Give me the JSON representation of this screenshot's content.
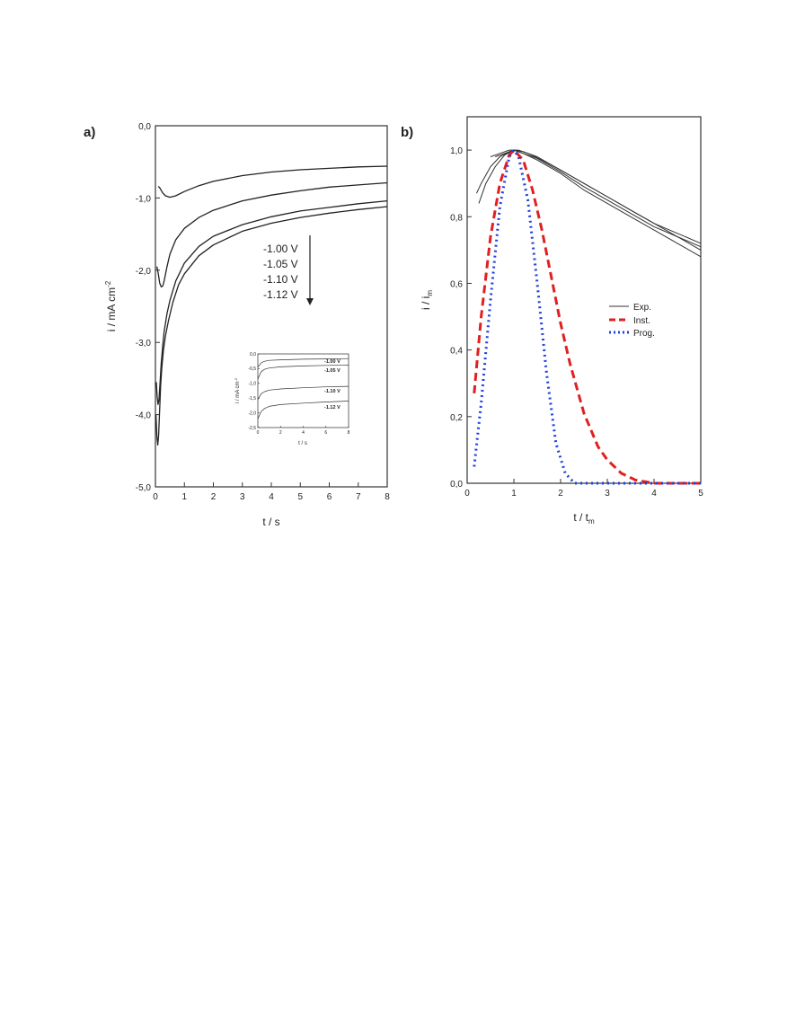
{
  "chart_data": [
    {
      "type": "line",
      "panel_label": "a)",
      "xlabel": "t / s",
      "ylabel": "i / mA cm",
      "ylabel_sup": "-2",
      "xlim": [
        0,
        8
      ],
      "ylim": [
        -5.0,
        0.0
      ],
      "x_ticks": [
        "0",
        "1",
        "2",
        "3",
        "4",
        "5",
        "6",
        "7",
        "8"
      ],
      "y_ticks": [
        "0,0",
        "-1,0",
        "-2,0",
        "-3,0",
        "-4,0",
        "-5,0"
      ],
      "grid": false,
      "arrow_labels": [
        "-1.00 V",
        "-1.05 V",
        "-1.10 V",
        "-1.12 V"
      ],
      "series": [
        {
          "x": [
            0.1,
            0.15,
            0.25,
            0.35,
            0.5,
            0.7,
            1.0,
            1.5,
            2,
            3,
            4,
            5,
            6,
            7,
            8
          ],
          "y": [
            -0.84,
            -0.86,
            -0.93,
            -0.97,
            -0.99,
            -0.97,
            -0.91,
            -0.83,
            -0.77,
            -0.69,
            -0.64,
            -0.61,
            -0.59,
            -0.57,
            -0.56
          ]
        },
        {
          "x": [
            0.05,
            0.1,
            0.15,
            0.2,
            0.25,
            0.3,
            0.4,
            0.5,
            0.7,
            1.0,
            1.5,
            2,
            3,
            4,
            5,
            6,
            7,
            8
          ],
          "y": [
            -1.95,
            -2.05,
            -2.18,
            -2.23,
            -2.22,
            -2.15,
            -1.95,
            -1.78,
            -1.58,
            -1.42,
            -1.27,
            -1.17,
            -1.04,
            -0.96,
            -0.9,
            -0.85,
            -0.82,
            -0.79
          ]
        },
        {
          "x": [
            0.03,
            0.06,
            0.09,
            0.12,
            0.16,
            0.2,
            0.25,
            0.3,
            0.4,
            0.5,
            0.7,
            1.0,
            1.5,
            2,
            3,
            4,
            5,
            6,
            7,
            8
          ],
          "y": [
            -3.55,
            -3.75,
            -3.86,
            -3.8,
            -3.55,
            -3.3,
            -3.05,
            -2.85,
            -2.6,
            -2.42,
            -2.15,
            -1.9,
            -1.67,
            -1.53,
            -1.37,
            -1.26,
            -1.18,
            -1.13,
            -1.08,
            -1.04
          ]
        },
        {
          "x": [
            0.02,
            0.05,
            0.08,
            0.11,
            0.14,
            0.18,
            0.22,
            0.28,
            0.35,
            0.45,
            0.6,
            0.8,
            1.0,
            1.5,
            2,
            3,
            4,
            5,
            6,
            7,
            8
          ],
          "y": [
            -4.0,
            -4.3,
            -4.42,
            -4.3,
            -4.0,
            -3.6,
            -3.35,
            -3.1,
            -2.9,
            -2.7,
            -2.45,
            -2.2,
            -2.05,
            -1.8,
            -1.65,
            -1.46,
            -1.35,
            -1.27,
            -1.21,
            -1.16,
            -1.12
          ]
        }
      ],
      "inset": {
        "xlabel": "t / s",
        "ylabel": "i / mA cm",
        "ylabel_sup": "-2",
        "xlim": [
          0,
          8
        ],
        "ylim": [
          -2.5,
          0.0
        ],
        "x_ticks": [
          "0",
          "2",
          "4",
          "6",
          "8"
        ],
        "y_ticks": [
          "0,0",
          "-0,5",
          "-1,0",
          "-1,5",
          "-2,0",
          "-2,5"
        ],
        "labels": [
          "-1.00 V",
          "-1.05 V",
          "-1.10 V",
          "-1.12 V"
        ],
        "series": [
          {
            "x": [
              0,
              0.3,
              0.6,
              1,
              2,
              4,
              6,
              8
            ],
            "y": [
              -0.45,
              -0.3,
              -0.25,
              -0.22,
              -0.2,
              -0.18,
              -0.17,
              -0.16
            ]
          },
          {
            "x": [
              0,
              0.3,
              0.6,
              1,
              2,
              4,
              6,
              8
            ],
            "y": [
              -0.85,
              -0.6,
              -0.52,
              -0.48,
              -0.44,
              -0.41,
              -0.39,
              -0.38
            ]
          },
          {
            "x": [
              0,
              0.3,
              0.6,
              1,
              2,
              4,
              6,
              8
            ],
            "y": [
              -1.55,
              -1.35,
              -1.28,
              -1.23,
              -1.19,
              -1.15,
              -1.12,
              -1.1
            ]
          },
          {
            "x": [
              0,
              0.3,
              0.6,
              1,
              2,
              4,
              6,
              8
            ],
            "y": [
              -2.2,
              -1.95,
              -1.85,
              -1.78,
              -1.72,
              -1.67,
              -1.63,
              -1.6
            ]
          }
        ]
      }
    },
    {
      "type": "line",
      "panel_label": "b)",
      "xlabel": "t / t",
      "xlabel_sub": "m",
      "ylabel": "i / i",
      "ylabel_sub": "m",
      "xlim": [
        0,
        5
      ],
      "ylim": [
        0.0,
        1.1
      ],
      "x_ticks": [
        "0",
        "1",
        "2",
        "3",
        "4",
        "5"
      ],
      "y_ticks": [
        "0,0",
        "0,2",
        "0,4",
        "0,6",
        "0,8",
        "1,0"
      ],
      "grid": false,
      "legend_position": "center-right",
      "legend": [
        "Exp.",
        "Inst.",
        "Prog."
      ],
      "colors": {
        "exp": "#333333",
        "inst": "#e02020",
        "prog": "#2040e0"
      },
      "series": [
        {
          "name": "Exp.",
          "style": "solid",
          "x": [
            0.2,
            0.3,
            0.5,
            0.7,
            0.9,
            1.0,
            1.2,
            1.5,
            2,
            2.5,
            3,
            3.5,
            4,
            4.5,
            5
          ],
          "y": [
            0.87,
            0.9,
            0.95,
            0.98,
            0.995,
            1.0,
            0.995,
            0.98,
            0.94,
            0.9,
            0.86,
            0.82,
            0.78,
            0.74,
            0.7
          ]
        },
        {
          "name": "Exp.",
          "style": "solid",
          "x": [
            0.25,
            0.4,
            0.6,
            0.8,
            1.0,
            1.2,
            1.5,
            2,
            2.5,
            3,
            3.5,
            4,
            4.5,
            5
          ],
          "y": [
            0.84,
            0.9,
            0.95,
            0.985,
            1.0,
            0.99,
            0.97,
            0.93,
            0.88,
            0.84,
            0.8,
            0.76,
            0.72,
            0.68
          ]
        },
        {
          "name": "Exp.",
          "style": "solid",
          "x": [
            0.5,
            0.7,
            0.9,
            1.1,
            1.3,
            1.6,
            2,
            2.5,
            3,
            3.5,
            4,
            4.5,
            5
          ],
          "y": [
            0.98,
            0.99,
            1.0,
            1.0,
            0.99,
            0.97,
            0.94,
            0.9,
            0.86,
            0.82,
            0.78,
            0.75,
            0.72
          ]
        },
        {
          "name": "Exp.",
          "style": "solid",
          "x": [
            0.6,
            0.8,
            1.0,
            1.2,
            1.5,
            2,
            2.5,
            3,
            3.5,
            4,
            4.5,
            5
          ],
          "y": [
            0.98,
            0.99,
            1.0,
            0.99,
            0.975,
            0.935,
            0.89,
            0.85,
            0.81,
            0.77,
            0.74,
            0.71
          ]
        },
        {
          "name": "Inst.",
          "style": "dashed",
          "x": [
            0.15,
            0.3,
            0.5,
            0.7,
            0.9,
            1.0,
            1.2,
            1.4,
            1.6,
            1.8,
            2.0,
            2.2,
            2.5,
            2.8,
            3.0,
            3.3,
            3.6,
            4.0,
            4.5,
            5.0
          ],
          "y": [
            0.27,
            0.5,
            0.74,
            0.9,
            0.985,
            1.0,
            0.97,
            0.88,
            0.76,
            0.62,
            0.48,
            0.36,
            0.21,
            0.11,
            0.07,
            0.03,
            0.01,
            0.0,
            0.0,
            0.0
          ]
        },
        {
          "name": "Prog.",
          "style": "dotted",
          "x": [
            0.15,
            0.3,
            0.5,
            0.7,
            0.9,
            1.0,
            1.1,
            1.3,
            1.5,
            1.7,
            1.9,
            2.1,
            2.3,
            2.6,
            3.0,
            4.0,
            5.0
          ],
          "y": [
            0.05,
            0.24,
            0.55,
            0.83,
            0.98,
            1.0,
            0.98,
            0.85,
            0.6,
            0.33,
            0.12,
            0.03,
            0.0,
            0.0,
            0.0,
            0.0,
            0.0
          ]
        }
      ]
    }
  ]
}
